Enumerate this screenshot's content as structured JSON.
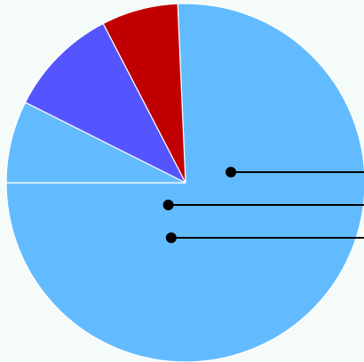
{
  "chart_data": {
    "type": "pie",
    "start_angle_deg": 180,
    "direction": "counterclockwise",
    "slices": [
      {
        "value": 75.7,
        "color": "#63bbff"
      },
      {
        "value": 6.9,
        "color": "#c00000"
      },
      {
        "value": 10.0,
        "color": "#5555ff"
      },
      {
        "value": 7.4,
        "color": "#63bbff"
      }
    ],
    "callouts": [
      {
        "slice": 0
      },
      {
        "slice": 2
      },
      {
        "slice": 1
      }
    ],
    "labels_visible": false
  }
}
